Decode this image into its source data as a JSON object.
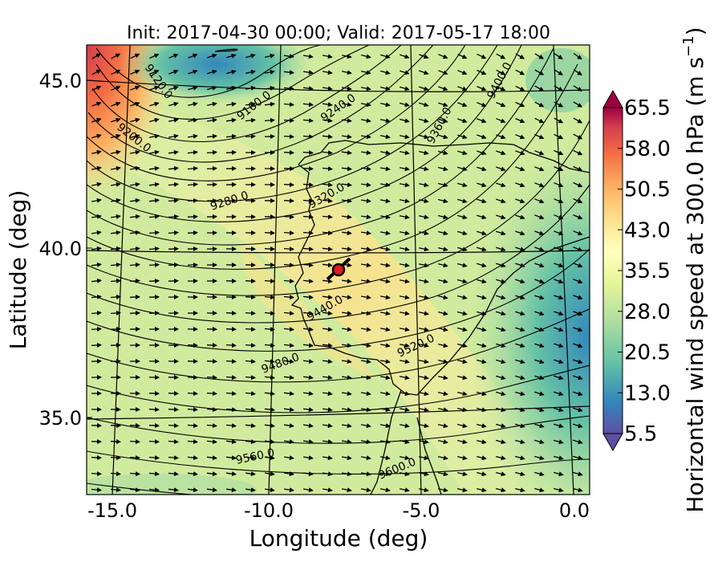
{
  "title": "Init: 2017-04-30 00:00; Valid: 2017-05-17 18:00",
  "xlabel": "Longitude (deg)",
  "ylabel": "Latitude (deg)",
  "colorbar_label": "Horizontal wind speed at 300.0 hPa (m s",
  "colorbar_label_sup": "−1",
  "colorbar_label_end": ")",
  "xticks": [
    "-15.0",
    "-10.0",
    "-5.0",
    "0.0"
  ],
  "yticks": [
    "45.0",
    "40.0",
    "35.0"
  ],
  "colorbar_ticks": [
    "65.5",
    "58.0",
    "50.5",
    "43.0",
    "35.5",
    "28.0",
    "20.5",
    "13.0",
    "5.5"
  ],
  "contour_labels": [
    "9120.0",
    "9160.0",
    "9200.0",
    "9240.0",
    "9280.0",
    "9320.0",
    "9360.0",
    "9400.0",
    "9440.0",
    "9480.0",
    "9520.0",
    "9560.0",
    "9600.0"
  ],
  "colors": {
    "marker": "#e21a1c",
    "palette": [
      "#5e4fa2",
      "#3288bd",
      "#66c2a5",
      "#abdda4",
      "#e6f598",
      "#ffffbf",
      "#fee08b",
      "#fdae61",
      "#f46d43",
      "#d53e4f",
      "#9e0142"
    ]
  },
  "chart_data": {
    "type": "map",
    "xlim": [
      -16,
      0
    ],
    "ylim": [
      33,
      46
    ],
    "colorbar_range": [
      5.5,
      65.5
    ],
    "marker": {
      "lon": -7.6,
      "lat": 39.3
    }
  }
}
